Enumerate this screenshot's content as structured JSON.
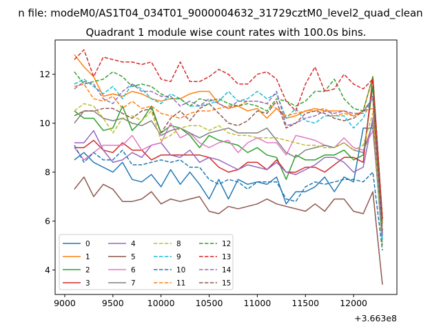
{
  "suptitle": "n file: modeM0/AS1T04_034T01_9000004632_31729cztM0_level2_quad_clean",
  "chart_data": {
    "type": "line",
    "title": "Quadrant 1 module wise count rates with 100.0s bins.",
    "xlabel": "",
    "ylabel": "",
    "x_offset_label": "+3.663e8",
    "xlim": [
      8900,
      12450
    ],
    "ylim": [
      3.0,
      13.4
    ],
    "xticks": [
      9000,
      9500,
      10000,
      10500,
      11000,
      11500,
      12000
    ],
    "yticks": [
      4,
      6,
      8,
      10,
      12
    ],
    "grid": false,
    "legend_position": "lower-left",
    "x": [
      9100,
      9200,
      9300,
      9400,
      9500,
      9600,
      9700,
      9800,
      9900,
      10000,
      10100,
      10200,
      10300,
      10400,
      10500,
      10600,
      10700,
      10800,
      10900,
      11000,
      11100,
      11200,
      11300,
      11400,
      11500,
      11600,
      11700,
      11800,
      11900,
      12000,
      12100,
      12200,
      12300
    ],
    "series": [
      {
        "name": "0",
        "color": "#1f77b4",
        "dash": "solid",
        "values": [
          8.5,
          8.8,
          8.4,
          8.2,
          8.0,
          8.4,
          7.7,
          7.6,
          7.9,
          7.4,
          8.1,
          7.5,
          8.0,
          7.5,
          6.9,
          7.7,
          6.9,
          7.7,
          7.5,
          7.6,
          7.5,
          7.8,
          6.7,
          7.2,
          7.2,
          7.4,
          7.8,
          7.2,
          7.8,
          7.6,
          9.8,
          9.8,
          5.4
        ]
      },
      {
        "name": "1",
        "color": "#ff7f0e",
        "dash": "solid",
        "values": [
          12.8,
          12.3,
          11.9,
          11.1,
          11.2,
          11.1,
          11.3,
          11.2,
          11.0,
          10.9,
          11.0,
          11.0,
          11.2,
          11.3,
          11.3,
          10.8,
          10.6,
          10.7,
          10.5,
          10.6,
          10.2,
          10.6,
          10.2,
          10.3,
          10.5,
          10.6,
          10.5,
          10.5,
          10.5,
          10.3,
          10.5,
          11.9,
          5.9
        ]
      },
      {
        "name": "2",
        "color": "#2ca02c",
        "dash": "solid",
        "values": [
          10.5,
          10.2,
          10.2,
          9.7,
          9.8,
          10.7,
          9.7,
          10.1,
          10.7,
          9.6,
          9.9,
          9.8,
          9.5,
          9.0,
          9.5,
          9.3,
          9.2,
          9.1,
          8.8,
          9.0,
          8.7,
          8.6,
          7.7,
          8.7,
          8.5,
          8.5,
          8.7,
          8.7,
          8.9,
          8.5,
          8.7,
          11.5,
          6.1
        ]
      },
      {
        "name": "3",
        "color": "#d62728",
        "dash": "solid",
        "values": [
          9.0,
          9.0,
          9.3,
          8.9,
          8.8,
          9.2,
          8.9,
          8.9,
          8.5,
          8.7,
          8.7,
          8.7,
          8.7,
          8.7,
          8.6,
          8.2,
          8.0,
          8.1,
          8.4,
          8.4,
          8.1,
          8.5,
          8.0,
          8.0,
          8.2,
          8.2,
          8.0,
          8.3,
          8.6,
          8.6,
          8.4,
          11.9,
          6.1
        ]
      },
      {
        "name": "4",
        "color": "#9467bd",
        "dash": "solid",
        "values": [
          9.2,
          9.2,
          9.7,
          8.9,
          8.4,
          8.5,
          8.8,
          8.6,
          9.1,
          9.2,
          8.7,
          8.6,
          8.9,
          8.4,
          8.6,
          8.5,
          8.3,
          8.1,
          8.3,
          8.2,
          8.1,
          8.4,
          8.0,
          7.9,
          8.1,
          8.3,
          8.6,
          8.6,
          8.4,
          8.0,
          8.2,
          10.2,
          5.4
        ]
      },
      {
        "name": "5",
        "color": "#8c564b",
        "dash": "solid",
        "values": [
          7.3,
          7.8,
          7.0,
          7.5,
          7.3,
          6.8,
          6.8,
          6.9,
          7.2,
          6.7,
          6.9,
          6.8,
          6.9,
          7.0,
          6.4,
          6.3,
          6.6,
          6.5,
          6.6,
          6.7,
          6.9,
          6.7,
          6.6,
          6.5,
          6.4,
          6.7,
          6.4,
          6.9,
          6.9,
          6.4,
          6.3,
          7.2,
          3.4
        ]
      },
      {
        "name": "6",
        "color": "#e377c2",
        "dash": "solid",
        "values": [
          9.0,
          8.5,
          8.8,
          9.1,
          9.1,
          9.1,
          9.5,
          8.9,
          9.1,
          9.2,
          10.0,
          9.4,
          9.6,
          9.2,
          9.0,
          9.2,
          9.3,
          8.8,
          9.2,
          9.4,
          9.2,
          9.2,
          8.7,
          9.5,
          9.4,
          9.3,
          9.1,
          9.0,
          9.4,
          9.0,
          8.9,
          9.7,
          5.5
        ]
      },
      {
        "name": "7",
        "color": "#7f7f7f",
        "dash": "solid",
        "values": [
          10.0,
          10.5,
          10.5,
          10.2,
          10.1,
          10.2,
          10.0,
          9.9,
          10.1,
          9.5,
          9.7,
          9.8,
          9.6,
          9.4,
          9.6,
          9.7,
          9.8,
          9.6,
          9.6,
          9.6,
          9.8,
          9.3,
          8.8,
          8.6,
          8.9,
          9.0,
          9.1,
          9.0,
          9.2,
          8.9,
          8.8,
          10.0,
          5.0
        ]
      },
      {
        "name": "8",
        "color": "#bcbd22",
        "dash": "dashed",
        "values": [
          10.5,
          10.8,
          10.7,
          10.2,
          9.6,
          10.2,
          10.3,
          10.1,
          10.5,
          9.3,
          9.5,
          9.8,
          9.9,
          9.9,
          9.7,
          9.9,
          9.6,
          9.5,
          9.5,
          9.4,
          9.4,
          9.4,
          9.3,
          9.2,
          9.1,
          9.1,
          9.0,
          9.0,
          9.2,
          8.9,
          9.1,
          10.4,
          5.0
        ]
      },
      {
        "name": "9",
        "color": "#17becf",
        "dash": "dashed",
        "values": [
          11.6,
          11.8,
          11.5,
          11.2,
          11.5,
          11.0,
          11.6,
          11.4,
          11.0,
          10.8,
          11.2,
          11.0,
          10.7,
          10.7,
          10.8,
          10.9,
          11.3,
          10.9,
          11.0,
          11.3,
          11.0,
          11.2,
          10.2,
          10.6,
          10.1,
          10.0,
          10.3,
          10.3,
          10.3,
          9.8,
          10.2,
          11.1,
          5.2
        ]
      },
      {
        "name": "10",
        "color": "#1f77b4",
        "dash": "dashed",
        "values": [
          9.1,
          8.4,
          8.8,
          8.5,
          8.5,
          8.9,
          8.3,
          8.3,
          8.4,
          8.5,
          8.4,
          8.5,
          8.2,
          8.2,
          7.7,
          7.5,
          7.7,
          7.6,
          7.3,
          7.6,
          7.6,
          7.6,
          6.9,
          6.8,
          7.4,
          7.6,
          7.5,
          7.6,
          7.7,
          7.7,
          7.6,
          8.0,
          4.8
        ]
      },
      {
        "name": "11",
        "color": "#ff7f0e",
        "dash": "dashed",
        "values": [
          11.5,
          11.6,
          11.0,
          10.9,
          11.1,
          10.6,
          10.9,
          10.6,
          10.7,
          10.4,
          10.3,
          10.2,
          10.4,
          10.5,
          10.5,
          10.6,
          10.7,
          10.7,
          10.9,
          10.9,
          10.8,
          10.6,
          10.3,
          10.4,
          10.5,
          10.5,
          10.6,
          10.3,
          10.4,
          10.3,
          10.5,
          10.6,
          5.9
        ]
      },
      {
        "name": "12",
        "color": "#2ca02c",
        "dash": "dashed",
        "values": [
          12.1,
          11.6,
          11.7,
          11.8,
          12.1,
          11.9,
          11.5,
          11.6,
          11.5,
          11.2,
          11.0,
          11.0,
          10.7,
          11.0,
          10.9,
          11.0,
          10.8,
          10.7,
          10.8,
          10.7,
          10.5,
          11.0,
          10.9,
          10.7,
          10.9,
          11.3,
          11.3,
          11.8,
          11.0,
          10.6,
          10.5,
          11.9,
          5.9
        ]
      },
      {
        "name": "13",
        "color": "#d62728",
        "dash": "dashed",
        "values": [
          12.6,
          13.0,
          11.9,
          12.7,
          12.6,
          12.5,
          12.5,
          12.4,
          12.5,
          11.8,
          11.7,
          12.5,
          11.7,
          11.7,
          11.9,
          12.2,
          12.0,
          11.6,
          11.6,
          12.0,
          12.1,
          11.8,
          10.9,
          10.5,
          11.6,
          12.3,
          11.3,
          11.4,
          12.0,
          11.6,
          11.4,
          11.8,
          6.1
        ]
      },
      {
        "name": "14",
        "color": "#9467bd",
        "dash": "dashed",
        "values": [
          11.4,
          11.7,
          11.6,
          11.0,
          10.8,
          11.3,
          11.6,
          11.3,
          11.3,
          11.1,
          11.1,
          10.7,
          10.9,
          10.7,
          11.0,
          10.8,
          10.6,
          10.9,
          10.9,
          10.9,
          10.8,
          11.3,
          9.9,
          10.0,
          10.2,
          10.3,
          10.5,
          10.4,
          10.5,
          10.4,
          10.4,
          11.1,
          5.5
        ]
      },
      {
        "name": "15",
        "color": "#8c564b",
        "dash": "dashed",
        "values": [
          10.3,
          10.5,
          10.5,
          10.6,
          10.6,
          10.4,
          10.2,
          10.5,
          10.6,
          9.6,
          10.2,
          10.5,
          10.1,
          10.6,
          10.8,
          10.4,
          10.0,
          9.9,
          10.1,
          10.5,
          10.4,
          10.9,
          9.8,
          10.0,
          10.4,
          10.5,
          10.4,
          10.2,
          10.1,
          10.2,
          10.5,
          11.0,
          5.6
        ]
      }
    ]
  }
}
